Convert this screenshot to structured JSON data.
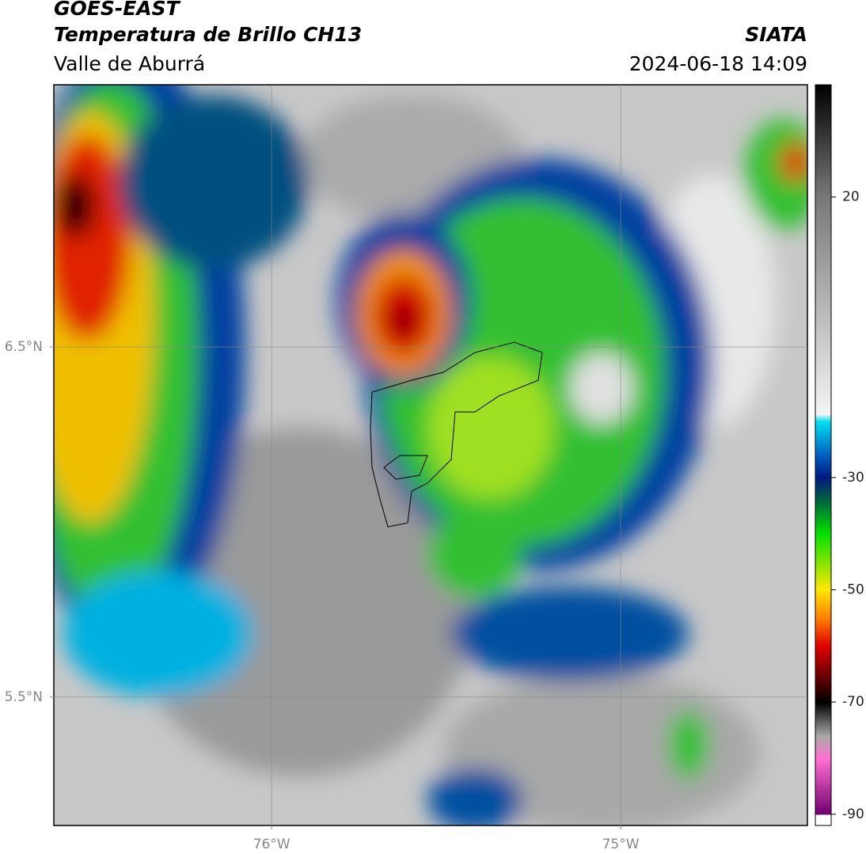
{
  "chart_data": {
    "type": "map",
    "title": "GOES-EAST",
    "subtitle": "Temperatura de Brillo CH13",
    "region": "Valle de Aburrá",
    "source": "SIATA",
    "datetime": "2024-06-18 14:09",
    "xlim": [
      -76.624,
      -74.465
    ],
    "ylim": [
      5.133,
      7.249
    ],
    "xticks": [
      {
        "value": -76,
        "label": "76°W"
      },
      {
        "value": -75,
        "label": "75°W"
      }
    ],
    "yticks": [
      {
        "value": 6.5,
        "label": "6.5°N"
      },
      {
        "value": 5.5,
        "label": "5.5°N"
      }
    ],
    "grid": true,
    "colorbar": {
      "clim": [
        -92,
        40
      ],
      "ticks": [
        20,
        -30,
        -50,
        -70,
        -90
      ]
    }
  }
}
